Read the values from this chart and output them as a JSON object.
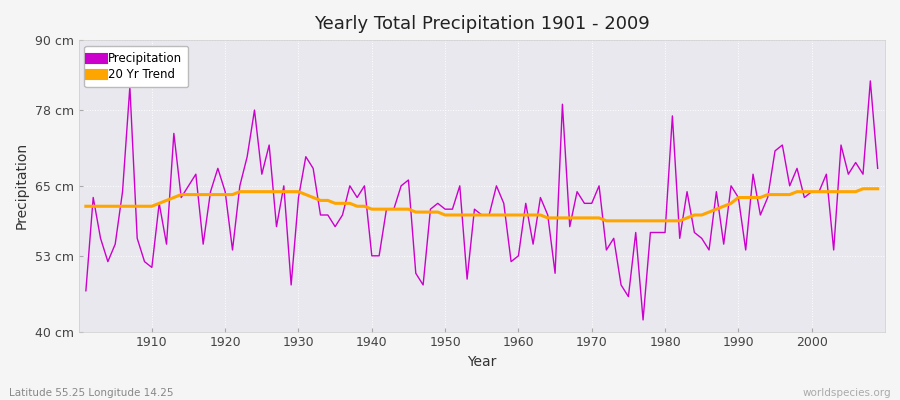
{
  "title": "Yearly Total Precipitation 1901 - 2009",
  "xlabel": "Year",
  "ylabel": "Precipitation",
  "subtitle": "Latitude 55.25 Longitude 14.25",
  "watermark": "worldspecies.org",
  "ylim": [
    40,
    90
  ],
  "yticks": [
    40,
    53,
    65,
    78,
    90
  ],
  "ytick_labels": [
    "40 cm",
    "53 cm",
    "65 cm",
    "78 cm",
    "90 cm"
  ],
  "precip_color": "#cc00cc",
  "trend_color": "#ffa500",
  "bg_color": "#e8e8ee",
  "fig_color": "#f5f5f5",
  "years": [
    1901,
    1902,
    1903,
    1904,
    1905,
    1906,
    1907,
    1908,
    1909,
    1910,
    1911,
    1912,
    1913,
    1914,
    1915,
    1916,
    1917,
    1918,
    1919,
    1920,
    1921,
    1922,
    1923,
    1924,
    1925,
    1926,
    1927,
    1928,
    1929,
    1930,
    1931,
    1932,
    1933,
    1934,
    1935,
    1936,
    1937,
    1938,
    1939,
    1940,
    1941,
    1942,
    1943,
    1944,
    1945,
    1946,
    1947,
    1948,
    1949,
    1950,
    1951,
    1952,
    1953,
    1954,
    1955,
    1956,
    1957,
    1958,
    1959,
    1960,
    1961,
    1962,
    1963,
    1964,
    1965,
    1966,
    1967,
    1968,
    1969,
    1970,
    1971,
    1972,
    1973,
    1974,
    1975,
    1976,
    1977,
    1978,
    1979,
    1980,
    1981,
    1982,
    1983,
    1984,
    1985,
    1986,
    1987,
    1988,
    1989,
    1990,
    1991,
    1992,
    1993,
    1994,
    1995,
    1996,
    1997,
    1998,
    1999,
    2000,
    2001,
    2002,
    2003,
    2004,
    2005,
    2006,
    2007,
    2008,
    2009
  ],
  "precipitation": [
    47,
    63,
    56,
    52,
    55,
    64,
    82,
    56,
    52,
    51,
    62,
    55,
    74,
    63,
    65,
    67,
    55,
    64,
    68,
    64,
    54,
    65,
    70,
    78,
    67,
    72,
    58,
    65,
    48,
    63,
    70,
    68,
    60,
    60,
    58,
    60,
    65,
    63,
    65,
    53,
    53,
    61,
    61,
    65,
    66,
    50,
    48,
    61,
    62,
    61,
    61,
    65,
    49,
    61,
    60,
    60,
    65,
    62,
    52,
    53,
    62,
    55,
    63,
    60,
    50,
    79,
    58,
    64,
    62,
    62,
    65,
    54,
    56,
    48,
    46,
    57,
    42,
    57,
    57,
    57,
    77,
    56,
    64,
    57,
    56,
    54,
    64,
    55,
    65,
    63,
    54,
    67,
    60,
    63,
    71,
    72,
    65,
    68,
    63,
    64,
    64,
    67,
    54,
    72,
    67,
    69,
    67,
    83,
    68
  ],
  "trend": [
    61.5,
    61.5,
    61.5,
    61.5,
    61.5,
    61.5,
    61.5,
    61.5,
    61.5,
    61.5,
    62.0,
    62.5,
    63.0,
    63.5,
    63.5,
    63.5,
    63.5,
    63.5,
    63.5,
    63.5,
    63.5,
    64.0,
    64.0,
    64.0,
    64.0,
    64.0,
    64.0,
    64.0,
    64.0,
    64.0,
    63.5,
    63.0,
    62.5,
    62.5,
    62.0,
    62.0,
    62.0,
    61.5,
    61.5,
    61.0,
    61.0,
    61.0,
    61.0,
    61.0,
    61.0,
    60.5,
    60.5,
    60.5,
    60.5,
    60.0,
    60.0,
    60.0,
    60.0,
    60.0,
    60.0,
    60.0,
    60.0,
    60.0,
    60.0,
    60.0,
    60.0,
    60.0,
    60.0,
    59.5,
    59.5,
    59.5,
    59.5,
    59.5,
    59.5,
    59.5,
    59.5,
    59.0,
    59.0,
    59.0,
    59.0,
    59.0,
    59.0,
    59.0,
    59.0,
    59.0,
    59.0,
    59.0,
    59.5,
    60.0,
    60.0,
    60.5,
    61.0,
    61.5,
    62.0,
    63.0,
    63.0,
    63.0,
    63.0,
    63.5,
    63.5,
    63.5,
    63.5,
    64.0,
    64.0,
    64.0,
    64.0,
    64.0,
    64.0,
    64.0,
    64.0,
    64.0,
    64.5,
    64.5,
    64.5
  ]
}
